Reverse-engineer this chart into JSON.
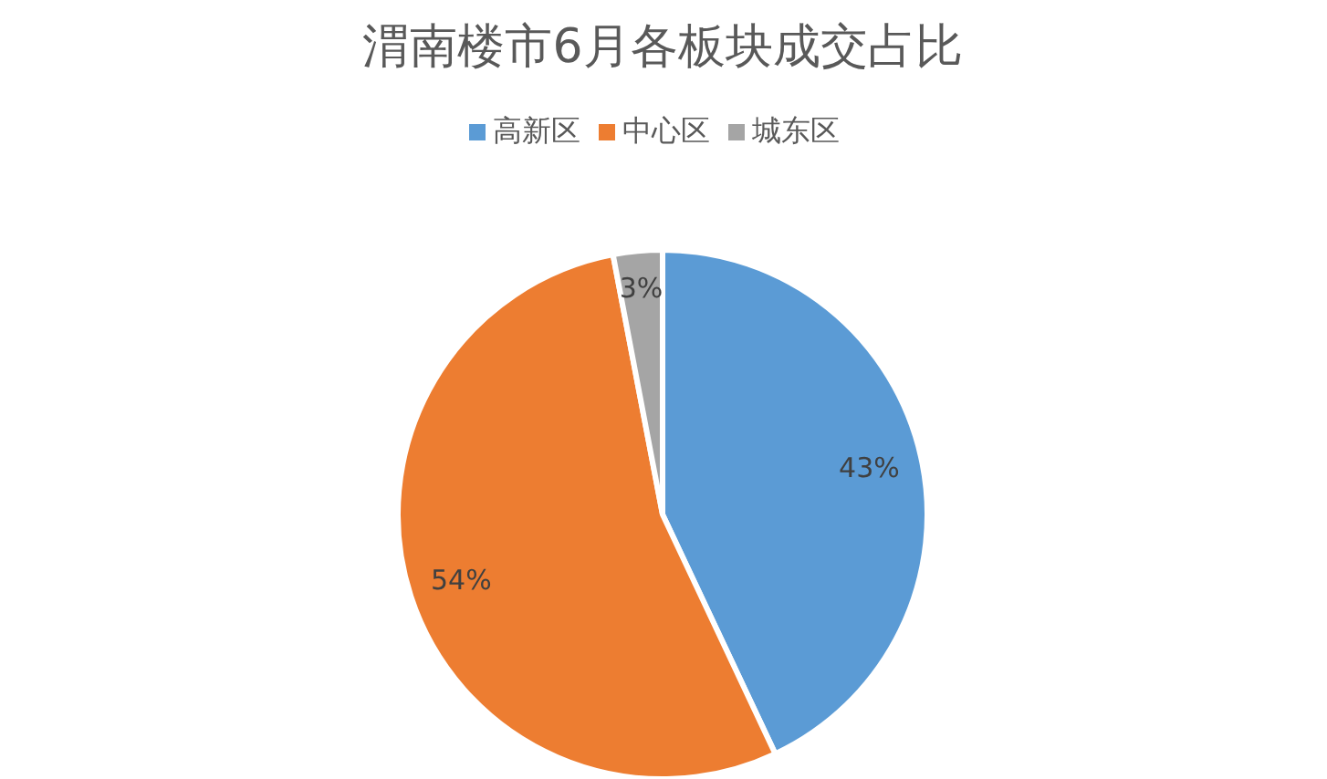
{
  "chart_data": {
    "type": "pie",
    "title": "渭南楼市6月各板块成交占比",
    "categories": [
      "高新区",
      "中心区",
      "城东区"
    ],
    "values": [
      43,
      54,
      3
    ],
    "colors": [
      "#5b9bd5",
      "#ed7d31",
      "#a5a5a5"
    ],
    "value_labels": [
      "43%",
      "54%",
      "3%"
    ],
    "legend": "top"
  }
}
